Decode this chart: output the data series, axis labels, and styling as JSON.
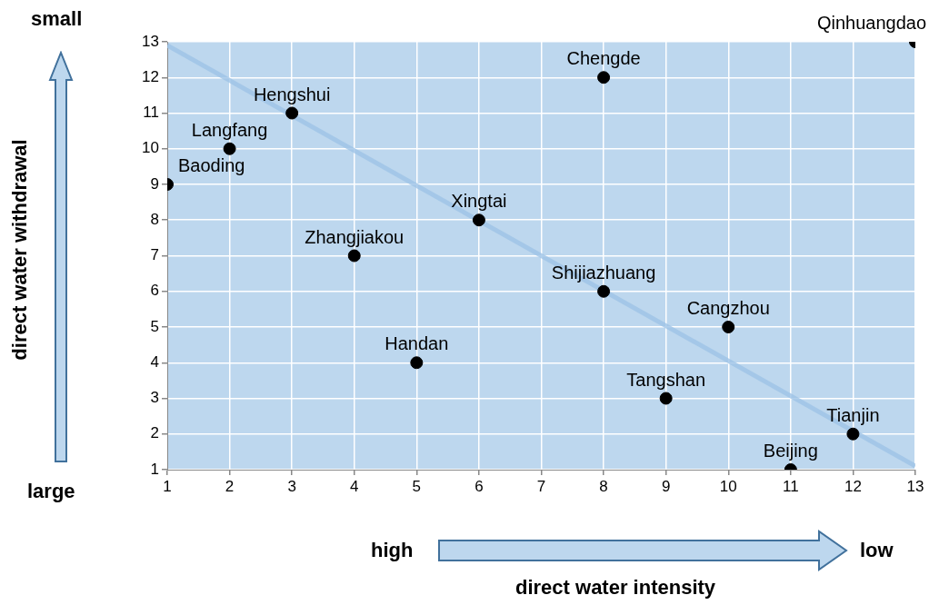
{
  "chart_data": {
    "type": "scatter",
    "xlabel": "direct water intensity",
    "series": [
      {
        "type": "line",
        "marker": "none",
        "color": "#9dc3e6",
        "x": [
          1,
          13
        ],
        "values": [
          12.9,
          1.1
        ]
      },
      {
        "color": "#000000",
        "x": [
          13,
          8,
          3,
          2,
          1,
          6,
          4,
          8,
          10,
          5,
          9,
          12,
          11
        ],
        "values": [
          13,
          12,
          11,
          10,
          9,
          8,
          7,
          6,
          5,
          4,
          3,
          2,
          1
        ]
      }
    ],
    "xlim": [
      1,
      13
    ],
    "xticks": [
      1,
      2,
      3,
      4,
      5,
      6,
      7,
      8,
      9,
      10,
      11,
      12,
      13
    ],
    "ylim": [
      1,
      13
    ],
    "yticks": [
      1,
      2,
      3,
      4,
      5,
      6,
      7,
      8,
      9,
      10,
      11,
      12,
      13
    ],
    "grid": true,
    "legend": false,
    "marker": "circle",
    "annotations": [
      "small",
      "large",
      "high",
      "low",
      "direct water withdrawal",
      {
        "text": "Qinhuangdao",
        "x": 13,
        "y": 13
      },
      {
        "text": "Chengde",
        "x": 8,
        "y": 12
      },
      {
        "text": "Hengshui",
        "x": 3,
        "y": 11
      },
      {
        "text": "Langfang",
        "x": 2,
        "y": 10
      },
      {
        "text": "Baoding",
        "x": 1,
        "y": 9
      },
      {
        "text": "Xingtai",
        "x": 6,
        "y": 8
      },
      {
        "text": "Zhangjiakou",
        "x": 4,
        "y": 7
      },
      {
        "text": "Shijiazhuang",
        "x": 8,
        "y": 6
      },
      {
        "text": "Cangzhou",
        "x": 10,
        "y": 5
      },
      {
        "text": "Handan",
        "x": 5,
        "y": 4
      },
      {
        "text": "Tangshan",
        "x": 9,
        "y": 3
      },
      {
        "text": "Tianjin",
        "x": 12,
        "y": 2
      },
      {
        "text": "Beijing",
        "x": 11,
        "y": 1
      }
    ]
  }
}
